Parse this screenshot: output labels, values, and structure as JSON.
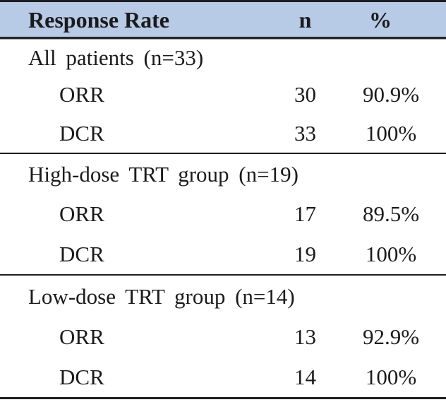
{
  "table": {
    "header": {
      "response_rate": "Response Rate",
      "n": "n",
      "percent": "%"
    },
    "sections": [
      {
        "label": "All patients (n=33)",
        "rows": [
          {
            "name": "ORR",
            "n": "30",
            "pct": "90.9%"
          },
          {
            "name": "DCR",
            "n": "33",
            "pct": "100%"
          }
        ]
      },
      {
        "label": "High-dose TRT group (n=19)",
        "rows": [
          {
            "name": "ORR",
            "n": "17",
            "pct": "89.5%"
          },
          {
            "name": "DCR",
            "n": "19",
            "pct": "100%"
          }
        ]
      },
      {
        "label": "Low-dose TRT group (n=14)",
        "rows": [
          {
            "name": "ORR",
            "n": "13",
            "pct": "92.9%"
          },
          {
            "name": "DCR",
            "n": "14",
            "pct": "100%"
          }
        ]
      }
    ]
  },
  "colors": {
    "header_bg": "#b7cae6",
    "rule": "#1e1e1e",
    "text": "#1b1b1b"
  }
}
